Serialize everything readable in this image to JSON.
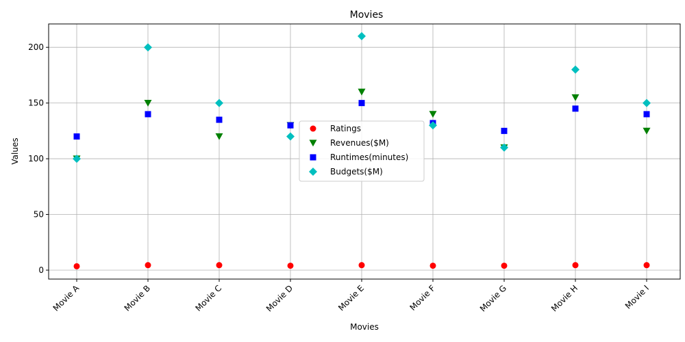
{
  "chart_data": {
    "type": "scatter",
    "title": "Movies",
    "xlabel": "Movies",
    "ylabel": "Values",
    "categories": [
      "Movie A",
      "Movie B",
      "Movie C",
      "Movie D",
      "Movie E",
      "Movie F",
      "Movie G",
      "Movie H",
      "Movie I"
    ],
    "ylim": [
      -8,
      221
    ],
    "yticks": [
      0,
      50,
      100,
      150,
      200
    ],
    "grid": true,
    "legend_position": "center",
    "series": [
      {
        "name": "Ratings",
        "marker": "circle",
        "color": "#ff0000",
        "values": [
          3.5,
          4.5,
          4.5,
          4.0,
          4.5,
          4.0,
          4.0,
          4.5,
          4.5
        ]
      },
      {
        "name": "Revenues($M)",
        "marker": "triangle-down",
        "color": "#008000",
        "values": [
          100,
          150,
          120,
          130,
          160,
          140,
          110,
          155,
          125
        ]
      },
      {
        "name": "Runtimes(minutes)",
        "marker": "square",
        "color": "#0000ff",
        "values": [
          120,
          140,
          135,
          130,
          150,
          132,
          125,
          145,
          140
        ]
      },
      {
        "name": "Budgets($M)",
        "marker": "diamond",
        "color": "#00bfbf",
        "values": [
          100,
          200,
          150,
          120,
          210,
          130,
          110,
          180,
          150
        ]
      }
    ]
  }
}
